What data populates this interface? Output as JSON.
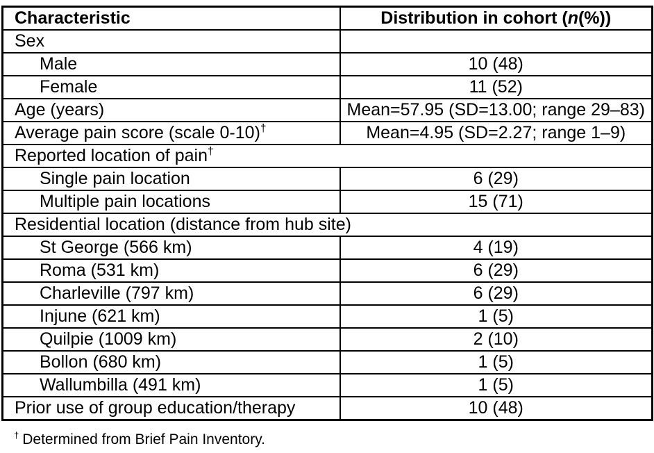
{
  "colors": {
    "border": "#000000",
    "text": "#000000",
    "background": "#ffffff"
  },
  "table": {
    "header": {
      "characteristic": "Characteristic",
      "distribution_prefix": "Distribution in cohort (",
      "distribution_n": "n",
      "distribution_suffix": "(%))"
    },
    "rows": [
      {
        "label": "Sex",
        "value": "",
        "span": false,
        "indent": false
      },
      {
        "label": "Male",
        "value": "10 (48)",
        "span": false,
        "indent": true
      },
      {
        "label": "Female",
        "value": "11 (52)",
        "span": false,
        "indent": true
      },
      {
        "label": "Age (years)",
        "value": "Mean=57.95 (SD=13.00; range 29–83)",
        "span": false,
        "indent": false
      },
      {
        "label": "Average pain score (scale 0-10)",
        "sup": "†",
        "value": "Mean=4.95 (SD=2.27; range 1–9)",
        "span": false,
        "indent": false
      },
      {
        "label": "Reported location of pain",
        "sup": "†",
        "span": true,
        "indent": false
      },
      {
        "label": "Single pain location",
        "value": "6 (29)",
        "span": false,
        "indent": true
      },
      {
        "label": "Multiple pain locations",
        "value": "15 (71)",
        "span": false,
        "indent": true
      },
      {
        "label": "Residential location (distance from hub site)",
        "span": true,
        "indent": false
      },
      {
        "label": "St George (566 km)",
        "value": "4 (19)",
        "span": false,
        "indent": true
      },
      {
        "label": "Roma (531 km)",
        "value": "6 (29)",
        "span": false,
        "indent": true
      },
      {
        "label": "Charleville (797 km)",
        "value": "6 (29)",
        "span": false,
        "indent": true
      },
      {
        "label": "Injune (621 km)",
        "value": "1 (5)",
        "span": false,
        "indent": true
      },
      {
        "label": "Quilpie (1009 km)",
        "value": "2 (10)",
        "span": false,
        "indent": true
      },
      {
        "label": "Bollon (680 km)",
        "value": "1 (5)",
        "span": false,
        "indent": true
      },
      {
        "label": "Wallumbilla (491 km)",
        "value": "1 (5)",
        "span": false,
        "indent": true
      },
      {
        "label": "Prior use of group education/therapy",
        "value": "10 (48)",
        "span": false,
        "indent": false
      }
    ]
  },
  "footnote": {
    "dagger": "†",
    "text": "Determined from Brief Pain Inventory."
  }
}
